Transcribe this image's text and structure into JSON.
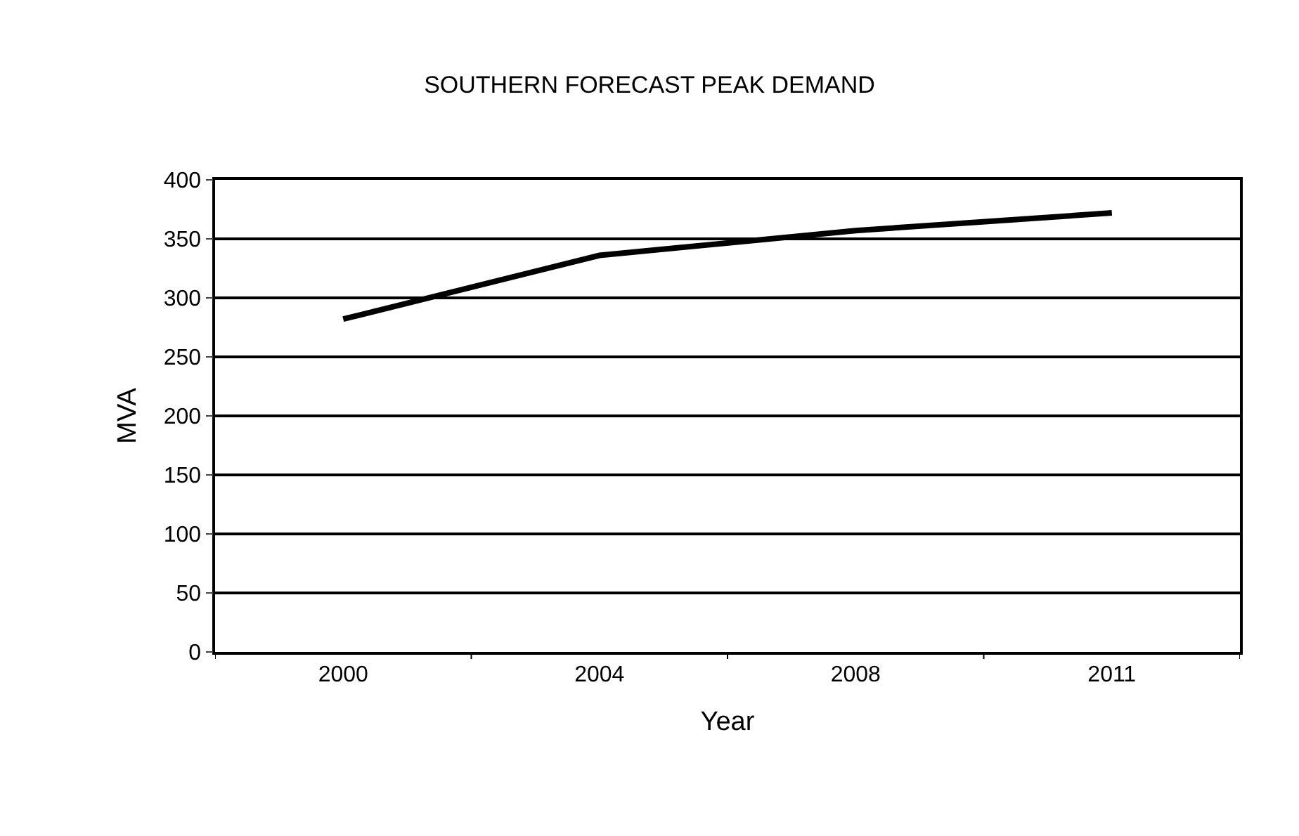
{
  "chart_data": {
    "type": "line",
    "title": "SOUTHERN FORECAST PEAK DEMAND",
    "xlabel": "Year",
    "ylabel": "MVA",
    "categories": [
      "2000",
      "2004",
      "2008",
      "2011"
    ],
    "series": [
      {
        "color": "#000000",
        "values": [
          282,
          336,
          357,
          372
        ]
      }
    ],
    "ylim": [
      0,
      400
    ],
    "yticks": [
      0,
      50,
      100,
      150,
      200,
      250,
      300,
      350,
      400
    ],
    "grid": "y",
    "marker": "none",
    "line_style": "solid"
  }
}
